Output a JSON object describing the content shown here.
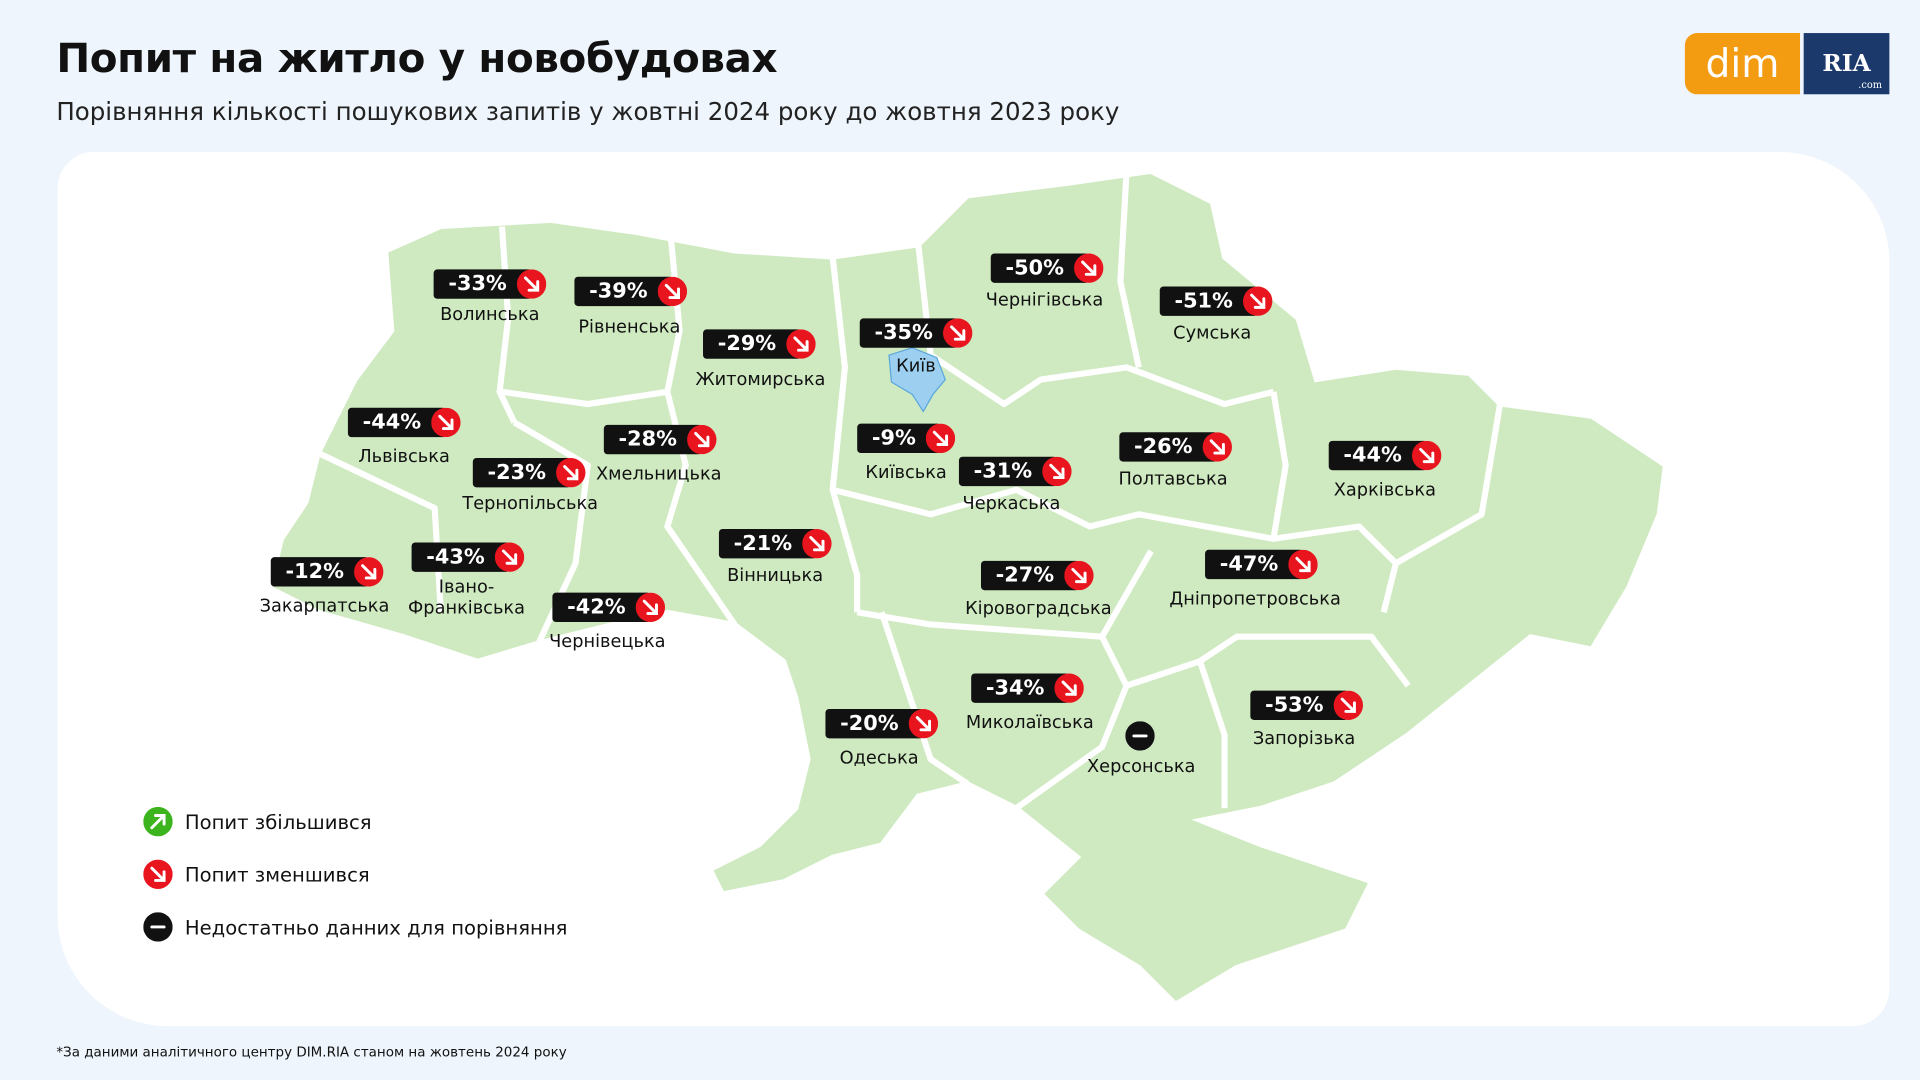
{
  "header": {
    "title": "Попит на житло у новобудовах",
    "subtitle": "Порівняння кількості пошукових запитів у жовтні 2024 року до жовтня 2023 року"
  },
  "logo": {
    "left": "dim",
    "right": "RIA",
    "domain": ".com"
  },
  "regions": [
    {
      "name": "Волинська",
      "change": "-33%",
      "status": "down"
    },
    {
      "name": "Рівненська",
      "change": "-39%",
      "status": "down"
    },
    {
      "name": "Житомирська",
      "change": "-29%",
      "status": "down"
    },
    {
      "name": "Київ",
      "change": "-35%",
      "status": "down"
    },
    {
      "name": "Чернігівська",
      "change": "-50%",
      "status": "down"
    },
    {
      "name": "Сумська",
      "change": "-51%",
      "status": "down"
    },
    {
      "name": "Львівська",
      "change": "-44%",
      "status": "down"
    },
    {
      "name": "Тернопільська",
      "change": "-23%",
      "status": "down"
    },
    {
      "name": "Хмельницька",
      "change": "-28%",
      "status": "down"
    },
    {
      "name": "Київська",
      "change": "-9%",
      "status": "down"
    },
    {
      "name": "Черкаська",
      "change": "-31%",
      "status": "down"
    },
    {
      "name": "Полтавська",
      "change": "-26%",
      "status": "down"
    },
    {
      "name": "Харківська",
      "change": "-44%",
      "status": "down"
    },
    {
      "name": "Закарпатська",
      "change": "-12%",
      "status": "down"
    },
    {
      "name": "Івано-Франківська",
      "change": "-43%",
      "status": "down"
    },
    {
      "name": "Чернівецька",
      "change": "-42%",
      "status": "down"
    },
    {
      "name": "Вінницька",
      "change": "-21%",
      "status": "down"
    },
    {
      "name": "Кіровоградська",
      "change": "-27%",
      "status": "down"
    },
    {
      "name": "Дніпропетровська",
      "change": "-47%",
      "status": "down"
    },
    {
      "name": "Миколаївська",
      "change": "-34%",
      "status": "down"
    },
    {
      "name": "Одеська",
      "change": "-20%",
      "status": "down"
    },
    {
      "name": "Херсонська",
      "status": "none"
    },
    {
      "name": "Запорізька",
      "change": "-53%",
      "status": "down"
    }
  ],
  "legend": [
    {
      "label": "Попит збільшився",
      "status": "up"
    },
    {
      "label": "Попит зменшився",
      "status": "down"
    },
    {
      "label": "Недостатньо данних для порівняння",
      "status": "none"
    }
  ],
  "footnote": "*За даними аналітичного центру DIM.RIA станом на жовтень 2024 року"
}
